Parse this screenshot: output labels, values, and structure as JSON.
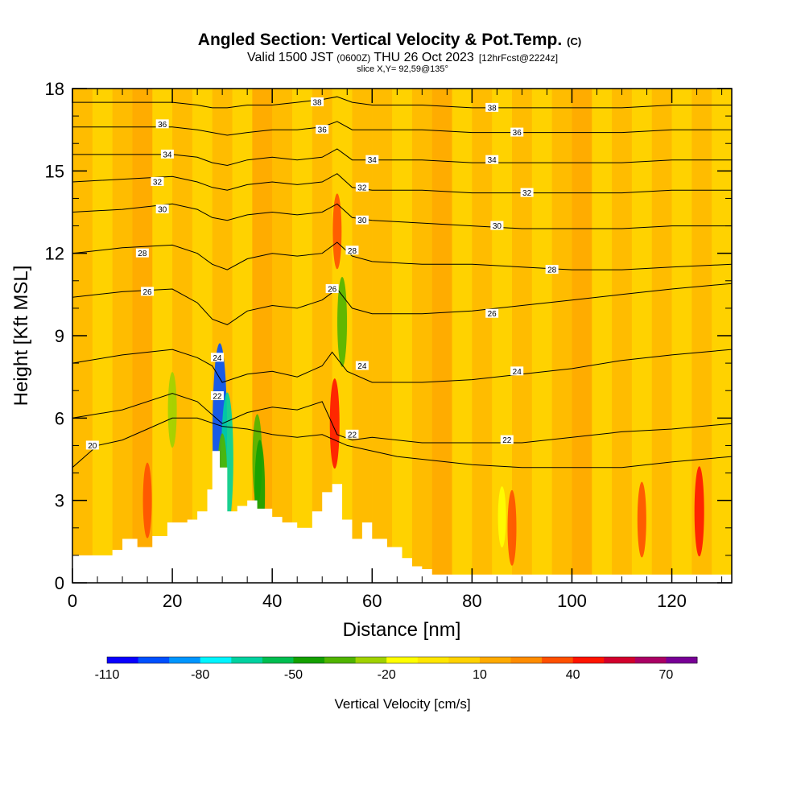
{
  "title": {
    "main": "Angled Section: Vertical Velocity & Pot.Temp.",
    "main_unit": "(C)",
    "valid_prefix": "Valid 1500 JST",
    "valid_z": "(0600Z)",
    "valid_date": "THU 26 Oct 2023",
    "forecast": "[12hrFcst@2224z]",
    "slice": "slice X,Y= 92,59@135°"
  },
  "chart_data": {
    "type": "heatmap",
    "xlabel": "Distance [nm]",
    "ylabel": "Height [Kft MSL]",
    "xlim": [
      0,
      132
    ],
    "ylim": [
      0,
      18
    ],
    "x_ticks": [
      0,
      20,
      40,
      60,
      80,
      100,
      120
    ],
    "y_ticks": [
      0,
      3,
      6,
      9,
      12,
      15,
      18
    ],
    "colorbar": {
      "title": "Vertical Velocity [cm/s]",
      "levels": [
        -110,
        -100,
        -90,
        -80,
        -70,
        -60,
        -50,
        -40,
        -30,
        -20,
        -10,
        0,
        10,
        20,
        30,
        40,
        50,
        60,
        70,
        80
      ],
      "colors": [
        "#0a00ff",
        "#0050ff",
        "#0096ff",
        "#00f5ff",
        "#00d2a0",
        "#00be50",
        "#14a000",
        "#50b400",
        "#a0d200",
        "#ffff00",
        "#ffe600",
        "#ffd200",
        "#ffaa00",
        "#ff8c00",
        "#ff5000",
        "#ff1400",
        "#d2002d",
        "#aa0064",
        "#780096"
      ],
      "labels": [
        -110,
        -80,
        -50,
        -20,
        10,
        40,
        70
      ]
    },
    "terrain": [
      [
        0,
        1.0
      ],
      [
        8,
        1.2
      ],
      [
        10,
        1.6
      ],
      [
        13,
        1.3
      ],
      [
        16,
        1.7
      ],
      [
        19,
        2.2
      ],
      [
        23,
        2.3
      ],
      [
        25,
        2.6
      ],
      [
        27,
        3.4
      ],
      [
        28,
        4.8
      ],
      [
        29.5,
        4.2
      ],
      [
        31,
        2.6
      ],
      [
        33,
        2.8
      ],
      [
        35,
        3.0
      ],
      [
        37,
        2.7
      ],
      [
        40,
        2.4
      ],
      [
        42,
        2.2
      ],
      [
        45,
        2.0
      ],
      [
        48,
        2.6
      ],
      [
        50,
        3.3
      ],
      [
        52,
        3.6
      ],
      [
        54,
        2.3
      ],
      [
        56,
        1.6
      ],
      [
        58,
        2.2
      ],
      [
        60,
        1.6
      ],
      [
        63,
        1.3
      ],
      [
        66,
        0.9
      ],
      [
        68,
        0.6
      ],
      [
        70,
        0.5
      ],
      [
        72,
        0.3
      ],
      [
        132,
        0.3
      ]
    ],
    "theta_contours": [
      {
        "label": "20",
        "points": [
          [
            0,
            4.2
          ],
          [
            5,
            5.0
          ],
          [
            10,
            5.2
          ],
          [
            15,
            5.6
          ],
          [
            20,
            6.0
          ],
          [
            25,
            6.0
          ],
          [
            30,
            5.7
          ],
          [
            35,
            5.6
          ],
          [
            40,
            5.4
          ],
          [
            45,
            5.3
          ],
          [
            50,
            5.4
          ],
          [
            55,
            5.0
          ],
          [
            60,
            4.8
          ],
          [
            65,
            4.6
          ],
          [
            70,
            4.5
          ],
          [
            80,
            4.3
          ],
          [
            90,
            4.2
          ],
          [
            100,
            4.2
          ],
          [
            110,
            4.2
          ],
          [
            120,
            4.4
          ],
          [
            132,
            4.6
          ]
        ]
      },
      {
        "label": "22",
        "points": [
          [
            0,
            6.0
          ],
          [
            10,
            6.3
          ],
          [
            20,
            6.9
          ],
          [
            25,
            6.6
          ],
          [
            30,
            5.8
          ],
          [
            35,
            6.2
          ],
          [
            40,
            6.4
          ],
          [
            45,
            6.3
          ],
          [
            50,
            6.6
          ],
          [
            53,
            5.4
          ],
          [
            56,
            5.2
          ],
          [
            60,
            5.3
          ],
          [
            70,
            5.1
          ],
          [
            80,
            5.1
          ],
          [
            90,
            5.1
          ],
          [
            100,
            5.3
          ],
          [
            110,
            5.5
          ],
          [
            120,
            5.6
          ],
          [
            132,
            5.8
          ]
        ]
      },
      {
        "label": "24",
        "points": [
          [
            0,
            8.0
          ],
          [
            10,
            8.3
          ],
          [
            20,
            8.5
          ],
          [
            25,
            8.2
          ],
          [
            28,
            7.9
          ],
          [
            30,
            7.3
          ],
          [
            35,
            7.6
          ],
          [
            40,
            7.7
          ],
          [
            45,
            7.5
          ],
          [
            50,
            7.9
          ],
          [
            52,
            8.4
          ],
          [
            55,
            7.7
          ],
          [
            60,
            7.3
          ],
          [
            70,
            7.3
          ],
          [
            80,
            7.4
          ],
          [
            90,
            7.6
          ],
          [
            100,
            7.8
          ],
          [
            110,
            8.1
          ],
          [
            120,
            8.3
          ],
          [
            132,
            8.5
          ]
        ]
      },
      {
        "label": "26",
        "points": [
          [
            0,
            10.4
          ],
          [
            10,
            10.6
          ],
          [
            20,
            10.7
          ],
          [
            25,
            10.2
          ],
          [
            28,
            9.6
          ],
          [
            31,
            9.4
          ],
          [
            35,
            9.9
          ],
          [
            40,
            10.1
          ],
          [
            45,
            10.0
          ],
          [
            50,
            10.3
          ],
          [
            53,
            10.7
          ],
          [
            56,
            10.0
          ],
          [
            60,
            9.8
          ],
          [
            70,
            9.8
          ],
          [
            80,
            9.9
          ],
          [
            90,
            10.1
          ],
          [
            100,
            10.3
          ],
          [
            110,
            10.5
          ],
          [
            120,
            10.7
          ],
          [
            132,
            10.9
          ]
        ]
      },
      {
        "label": "28",
        "points": [
          [
            0,
            12.0
          ],
          [
            10,
            12.2
          ],
          [
            20,
            12.3
          ],
          [
            25,
            12.0
          ],
          [
            28,
            11.6
          ],
          [
            31,
            11.4
          ],
          [
            35,
            11.8
          ],
          [
            40,
            12.0
          ],
          [
            45,
            11.9
          ],
          [
            50,
            12.0
          ],
          [
            53,
            12.4
          ],
          [
            56,
            11.9
          ],
          [
            60,
            11.7
          ],
          [
            70,
            11.6
          ],
          [
            80,
            11.6
          ],
          [
            90,
            11.5
          ],
          [
            100,
            11.4
          ],
          [
            110,
            11.4
          ],
          [
            120,
            11.5
          ],
          [
            132,
            11.6
          ]
        ]
      },
      {
        "label": "30",
        "points": [
          [
            0,
            13.5
          ],
          [
            10,
            13.6
          ],
          [
            20,
            13.8
          ],
          [
            25,
            13.6
          ],
          [
            28,
            13.3
          ],
          [
            31,
            13.2
          ],
          [
            35,
            13.4
          ],
          [
            40,
            13.5
          ],
          [
            45,
            13.4
          ],
          [
            50,
            13.5
          ],
          [
            53,
            13.8
          ],
          [
            56,
            13.3
          ],
          [
            60,
            13.2
          ],
          [
            70,
            13.1
          ],
          [
            80,
            13.0
          ],
          [
            90,
            12.9
          ],
          [
            100,
            12.9
          ],
          [
            110,
            12.9
          ],
          [
            120,
            13.0
          ],
          [
            132,
            13.0
          ]
        ]
      },
      {
        "label": "32",
        "points": [
          [
            0,
            14.6
          ],
          [
            10,
            14.7
          ],
          [
            20,
            14.8
          ],
          [
            25,
            14.6
          ],
          [
            28,
            14.4
          ],
          [
            31,
            14.3
          ],
          [
            35,
            14.5
          ],
          [
            40,
            14.6
          ],
          [
            45,
            14.5
          ],
          [
            50,
            14.6
          ],
          [
            53,
            14.9
          ],
          [
            56,
            14.4
          ],
          [
            60,
            14.3
          ],
          [
            70,
            14.3
          ],
          [
            80,
            14.2
          ],
          [
            90,
            14.2
          ],
          [
            100,
            14.2
          ],
          [
            110,
            14.2
          ],
          [
            120,
            14.3
          ],
          [
            132,
            14.3
          ]
        ]
      },
      {
        "label": "34",
        "points": [
          [
            0,
            15.6
          ],
          [
            10,
            15.6
          ],
          [
            20,
            15.6
          ],
          [
            25,
            15.5
          ],
          [
            28,
            15.3
          ],
          [
            31,
            15.2
          ],
          [
            35,
            15.4
          ],
          [
            40,
            15.5
          ],
          [
            45,
            15.4
          ],
          [
            50,
            15.5
          ],
          [
            53,
            15.8
          ],
          [
            56,
            15.4
          ],
          [
            60,
            15.4
          ],
          [
            70,
            15.4
          ],
          [
            80,
            15.3
          ],
          [
            90,
            15.3
          ],
          [
            100,
            15.3
          ],
          [
            110,
            15.3
          ],
          [
            120,
            15.4
          ],
          [
            132,
            15.4
          ]
        ]
      },
      {
        "label": "36",
        "points": [
          [
            0,
            16.6
          ],
          [
            10,
            16.6
          ],
          [
            20,
            16.6
          ],
          [
            25,
            16.5
          ],
          [
            28,
            16.4
          ],
          [
            31,
            16.3
          ],
          [
            35,
            16.4
          ],
          [
            40,
            16.5
          ],
          [
            45,
            16.5
          ],
          [
            50,
            16.6
          ],
          [
            53,
            16.8
          ],
          [
            56,
            16.5
          ],
          [
            60,
            16.5
          ],
          [
            70,
            16.5
          ],
          [
            80,
            16.4
          ],
          [
            90,
            16.4
          ],
          [
            100,
            16.4
          ],
          [
            110,
            16.4
          ],
          [
            120,
            16.5
          ],
          [
            132,
            16.5
          ]
        ]
      },
      {
        "label": "38",
        "points": [
          [
            0,
            17.5
          ],
          [
            10,
            17.5
          ],
          [
            20,
            17.5
          ],
          [
            25,
            17.4
          ],
          [
            28,
            17.3
          ],
          [
            31,
            17.3
          ],
          [
            35,
            17.4
          ],
          [
            40,
            17.4
          ],
          [
            45,
            17.5
          ],
          [
            50,
            17.6
          ],
          [
            53,
            17.7
          ],
          [
            56,
            17.5
          ],
          [
            60,
            17.4
          ],
          [
            70,
            17.4
          ],
          [
            80,
            17.3
          ],
          [
            90,
            17.3
          ],
          [
            100,
            17.3
          ],
          [
            110,
            17.3
          ],
          [
            120,
            17.4
          ],
          [
            132,
            17.4
          ]
        ]
      }
    ],
    "contour_label_positions": [
      {
        "label": "20",
        "x": 4,
        "y": 5.0
      },
      {
        "label": "22",
        "x": 56,
        "y": 5.4
      },
      {
        "label": "22",
        "x": 87,
        "y": 5.2
      },
      {
        "label": "22",
        "x": 29,
        "y": 6.8
      },
      {
        "label": "24",
        "x": 29,
        "y": 8.2
      },
      {
        "label": "24",
        "x": 58,
        "y": 7.9
      },
      {
        "label": "24",
        "x": 89,
        "y": 7.7
      },
      {
        "label": "26",
        "x": 15,
        "y": 10.6
      },
      {
        "label": "26",
        "x": 52,
        "y": 10.7
      },
      {
        "label": "26",
        "x": 84,
        "y": 9.8
      },
      {
        "label": "28",
        "x": 14,
        "y": 12.0
      },
      {
        "label": "28",
        "x": 56,
        "y": 12.1
      },
      {
        "label": "28",
        "x": 96,
        "y": 11.4
      },
      {
        "label": "30",
        "x": 18,
        "y": 13.6
      },
      {
        "label": "30",
        "x": 58,
        "y": 13.2
      },
      {
        "label": "30",
        "x": 85,
        "y": 13.0
      },
      {
        "label": "32",
        "x": 17,
        "y": 14.6
      },
      {
        "label": "32",
        "x": 58,
        "y": 14.4
      },
      {
        "label": "32",
        "x": 91,
        "y": 14.2
      },
      {
        "label": "34",
        "x": 19,
        "y": 15.6
      },
      {
        "label": "34",
        "x": 60,
        "y": 15.4
      },
      {
        "label": "34",
        "x": 84,
        "y": 15.4
      },
      {
        "label": "36",
        "x": 18,
        "y": 16.7
      },
      {
        "label": "36",
        "x": 50,
        "y": 16.5
      },
      {
        "label": "36",
        "x": 89,
        "y": 16.4
      },
      {
        "label": "38",
        "x": 49,
        "y": 17.5
      },
      {
        "label": "38",
        "x": 84,
        "y": 17.3
      }
    ],
    "velocity_features": [
      {
        "x": 29.5,
        "y": 5.5,
        "value": -100
      },
      {
        "x": 31,
        "y": 4.5,
        "value": -70
      },
      {
        "x": 30,
        "y": 3.8,
        "value": -40
      },
      {
        "x": 37,
        "y": 4.5,
        "value": -40
      },
      {
        "x": 37.5,
        "y": 3.3,
        "value": -50
      },
      {
        "x": 20,
        "y": 6.3,
        "value": -30
      },
      {
        "x": 54,
        "y": 9.5,
        "value": -40
      },
      {
        "x": 52.5,
        "y": 5.8,
        "value": 40
      },
      {
        "x": 53,
        "y": 12.8,
        "value": 30
      },
      {
        "x": 15,
        "y": 3.0,
        "value": 30
      },
      {
        "x": 125.5,
        "y": 2.6,
        "value": 40
      },
      {
        "x": 114,
        "y": 2.3,
        "value": 30
      },
      {
        "x": 88,
        "y": 2.0,
        "value": 30
      },
      {
        "x": 86,
        "y": 2.4,
        "value": -20
      }
    ]
  }
}
